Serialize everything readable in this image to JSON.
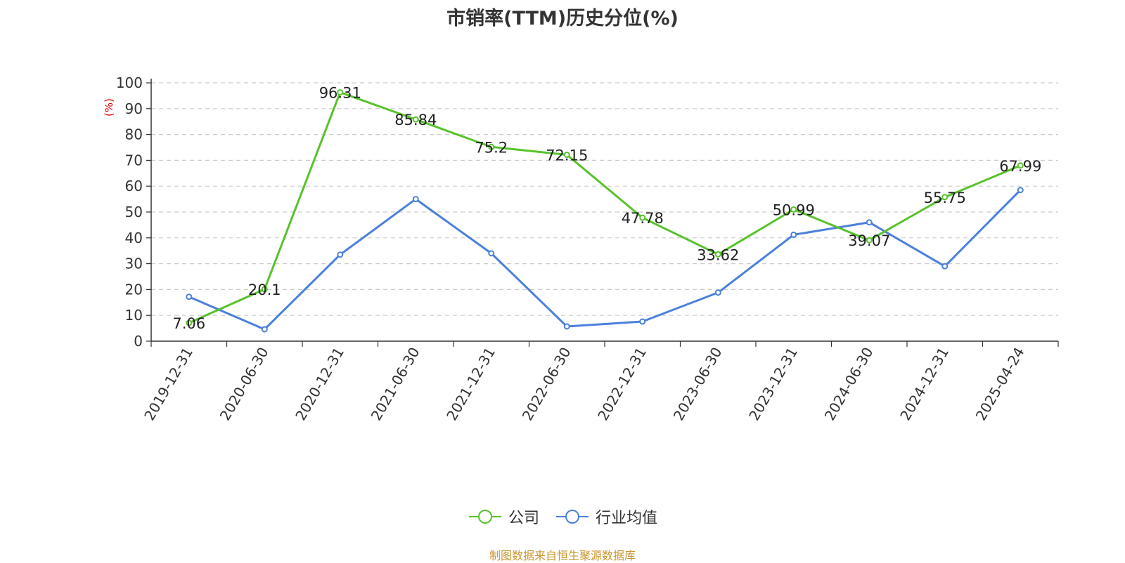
{
  "title": "市销率(TTM)历史分位(%)",
  "source": "制图数据来自恒生聚源数据库",
  "colors": {
    "company": "#58c22c",
    "industry": "#4c80dc",
    "unit_label": "#e00000",
    "source": "#c8962f"
  },
  "chart_data": {
    "type": "line",
    "title": "市销率(TTM)历史分位(%)",
    "ylabel": "(%)",
    "ylim": [
      0,
      100
    ],
    "yticks": [
      0,
      10,
      20,
      30,
      40,
      50,
      60,
      70,
      80,
      90,
      100
    ],
    "grid": true,
    "legend_position": "bottom",
    "categories": [
      "2019-12-31",
      "2020-06-30",
      "2020-12-31",
      "2021-06-30",
      "2021-12-31",
      "2022-06-30",
      "2022-12-31",
      "2023-06-30",
      "2023-12-31",
      "2024-06-30",
      "2024-12-31",
      "2025-04-24"
    ],
    "series": [
      {
        "name": "公司",
        "values": [
          7.06,
          20.1,
          96.31,
          85.84,
          75.2,
          72.15,
          47.78,
          33.62,
          50.99,
          39.07,
          55.75,
          67.99
        ],
        "labels": [
          "7.06",
          "20.1",
          "96.31",
          "85.84",
          "75.2",
          "72.15",
          "47.78",
          "33.62",
          "50.99",
          "39.07",
          "55.75",
          "67.99"
        ],
        "show_labels": true
      },
      {
        "name": "行业均值",
        "values": [
          17.2,
          4.6,
          33.5,
          55.0,
          34.0,
          5.7,
          7.6,
          18.8,
          41.2,
          46.0,
          29.0,
          58.5
        ],
        "show_labels": false
      }
    ]
  }
}
